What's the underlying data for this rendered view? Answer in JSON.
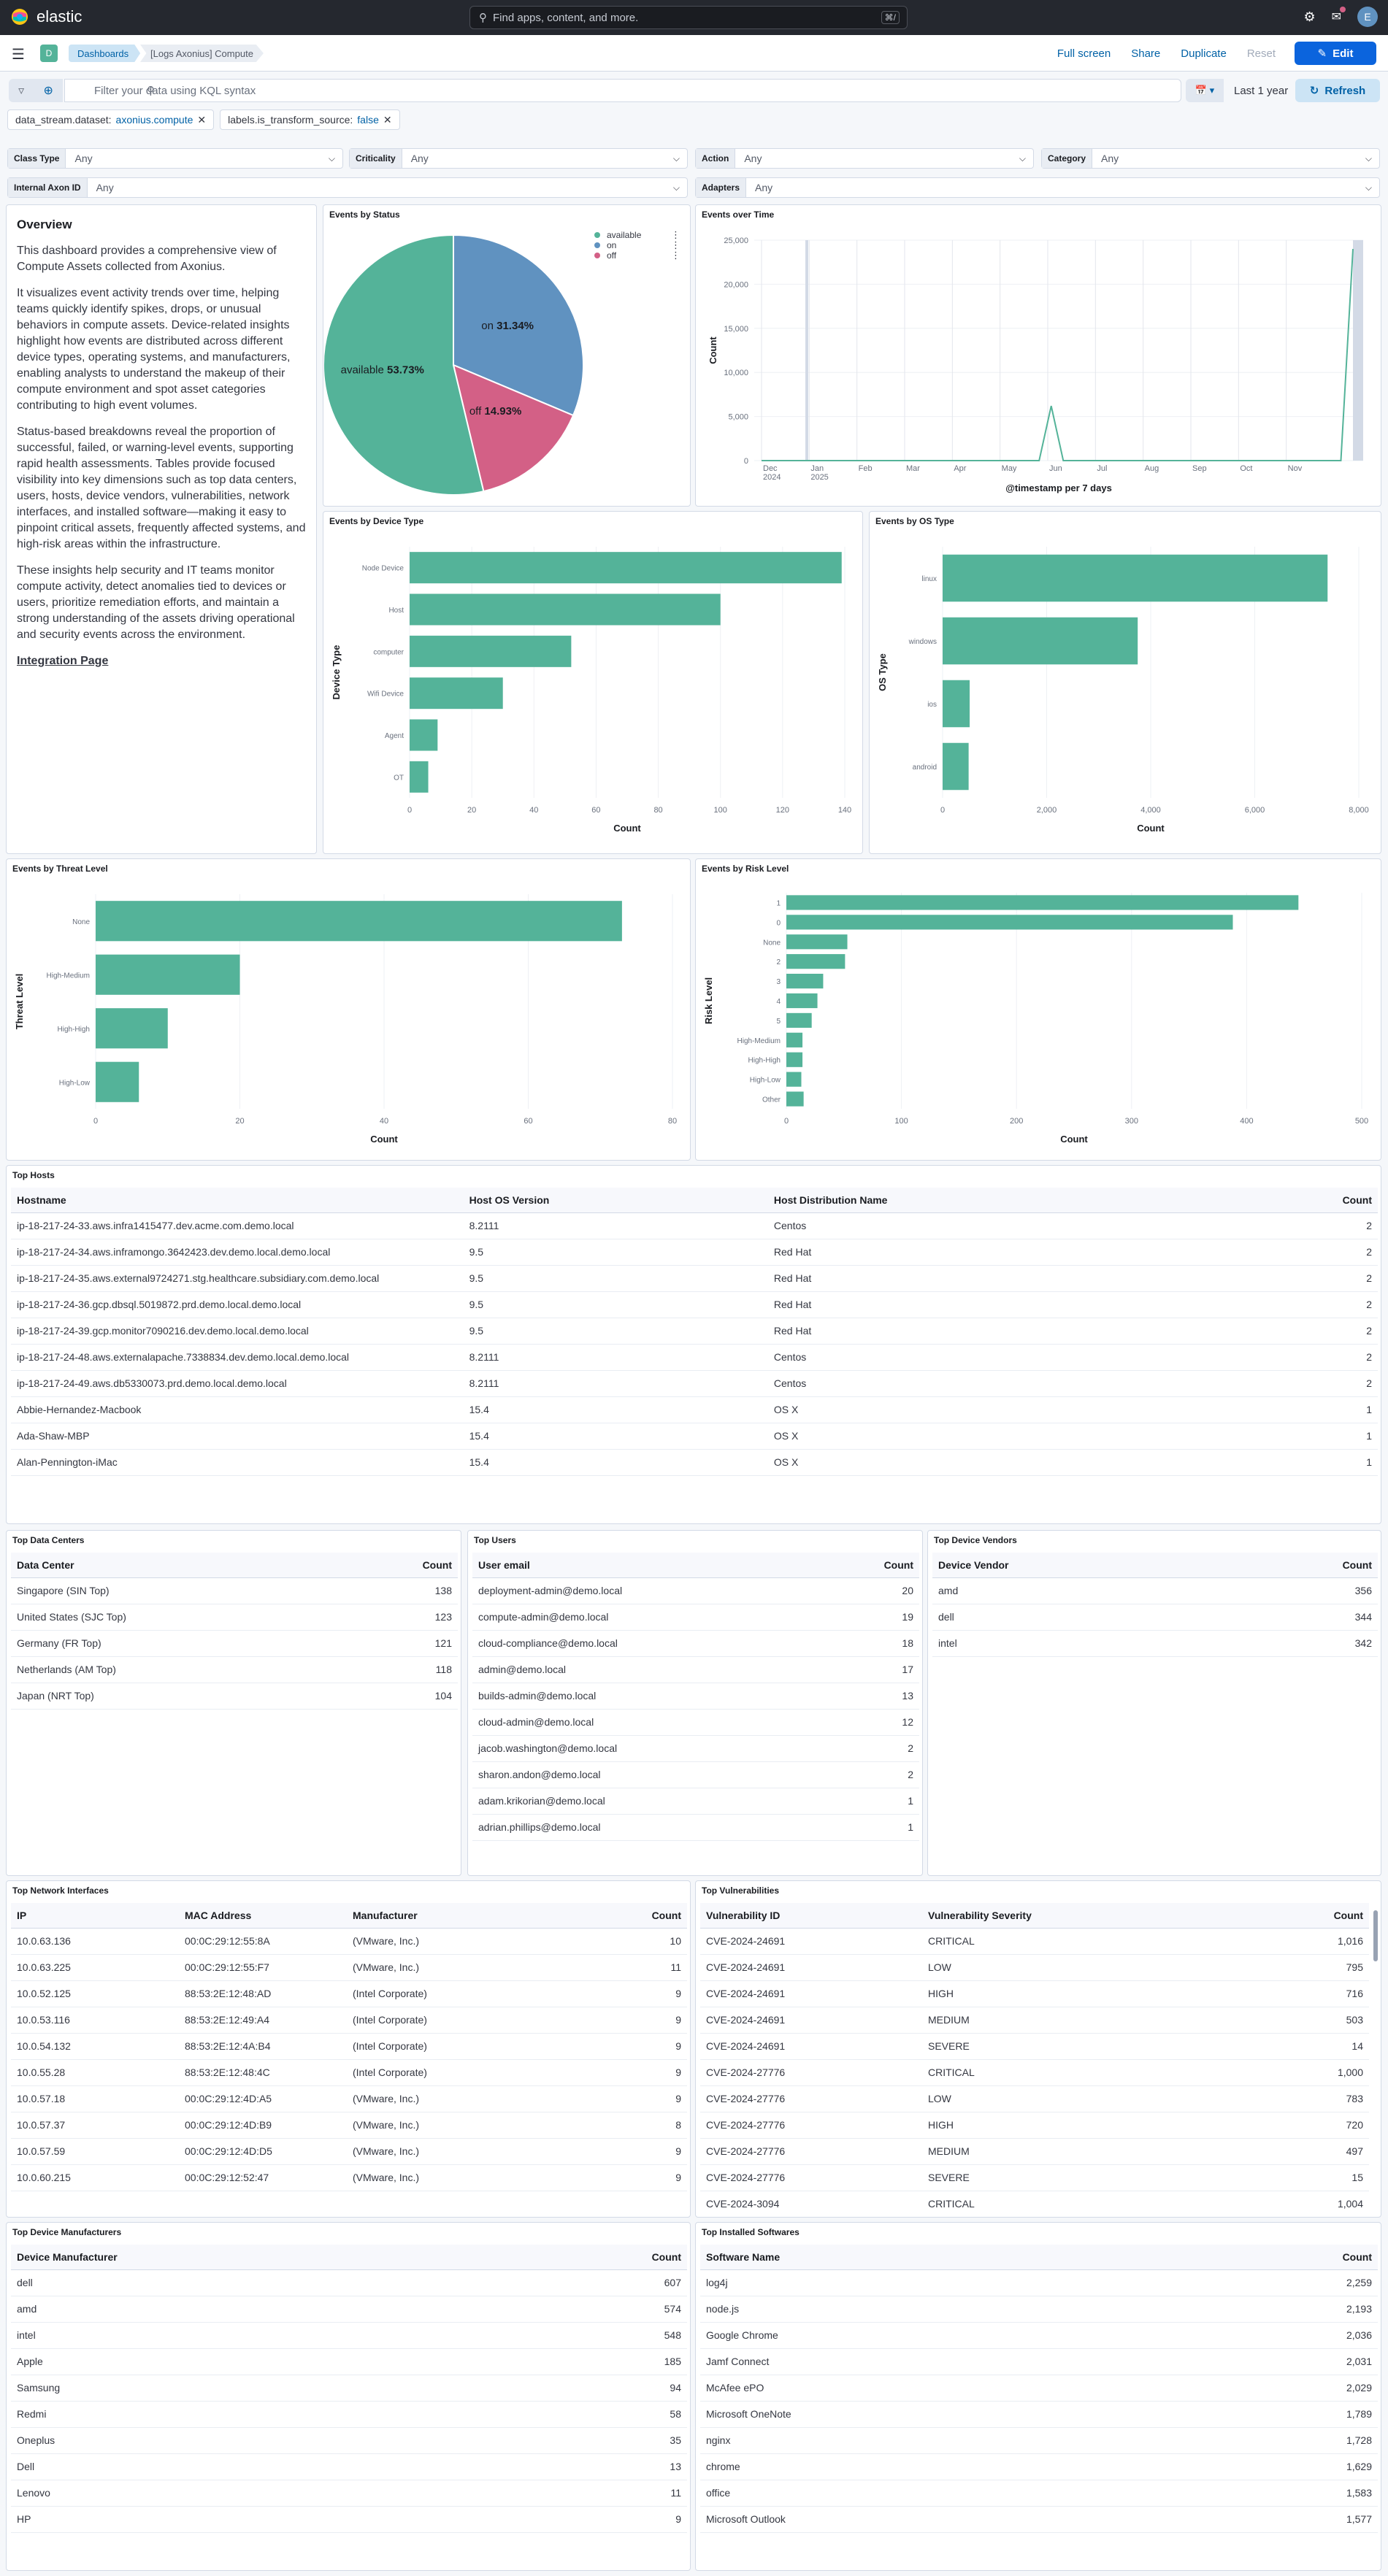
{
  "app": {
    "name": "elastic",
    "search_placeholder": "Find apps, content, and more.",
    "search_shortcut": "⌘/",
    "avatar": "E",
    "space": "D"
  },
  "breadcrumbs": [
    "Dashboards",
    "[Logs Axonius] Compute"
  ],
  "actions": {
    "fullscreen": "Full screen",
    "share": "Share",
    "duplicate": "Duplicate",
    "reset": "Reset",
    "edit": "Edit"
  },
  "query": {
    "placeholder": "Filter your data using KQL syntax",
    "time": "Last 1 year",
    "refresh": "Refresh"
  },
  "filters": [
    {
      "key": "data_stream.dataset:",
      "value": "axonius.compute"
    },
    {
      "key": "labels.is_transform_source:",
      "value": "false"
    }
  ],
  "controls": [
    {
      "label": "Class Type",
      "value": "Any"
    },
    {
      "label": "Criticality",
      "value": "Any"
    },
    {
      "label": "Action",
      "value": "Any"
    },
    {
      "label": "Category",
      "value": "Any"
    },
    {
      "label": "Internal Axon ID",
      "value": "Any"
    },
    {
      "label": "Adapters",
      "value": "Any"
    }
  ],
  "overview": {
    "title": "Overview",
    "paragraphs": [
      "This dashboard provides a comprehensive view of Compute Assets collected from Axonius.",
      "It visualizes event activity trends over time, helping teams quickly identify spikes, drops, or unusual behaviors in compute assets. Device-related insights highlight how events are distributed across different device types, operating systems, and manufacturers, enabling analysts to understand the makeup of their compute environment and spot asset categories contributing to high event volumes.",
      "Status-based breakdowns reveal the proportion of successful, failed, or warning-level events, supporting rapid health assessments. Tables provide focused visibility into key dimensions such as top data centers, users, hosts, device vendors, vulnerabilities, network interfaces, and installed software—making it easy to pinpoint critical assets, frequently affected systems, and high-risk areas within the infrastructure.",
      "These insights help security and IT teams monitor compute activity, detect anomalies tied to devices or users, prioritize remediation efforts, and maintain a strong understanding of the assets driving operational and security events across the environment."
    ],
    "link": "Integration Page"
  },
  "panels": {
    "status": "Events by Status",
    "over_time": "Events over Time",
    "device_type": "Events by Device Type",
    "os_type": "Events by OS Type",
    "threat": "Events by Threat Level",
    "risk": "Events by Risk Level",
    "top_hosts": "Top Hosts",
    "top_dc": "Top Data Centers",
    "top_users": "Top Users",
    "top_vendors": "Top Device Vendors",
    "top_net": "Top Network Interfaces",
    "top_vuln": "Top Vulnerabilities",
    "top_mfr": "Top Device Manufacturers",
    "top_sw": "Top Installed Softwares"
  },
  "chart_data": [
    {
      "type": "pie",
      "title": "Events by Status",
      "series": [
        {
          "name": "available",
          "value": 53.73,
          "color": "#54b399"
        },
        {
          "name": "on",
          "value": 31.34,
          "color": "#6092c0"
        },
        {
          "name": "off",
          "value": 14.93,
          "color": "#d36086"
        }
      ],
      "labels": [
        "available 53.73%",
        "on 31.34%",
        "off 14.93%"
      ],
      "legend": "top-right"
    },
    {
      "type": "line",
      "title": "Events over Time",
      "xlabel": "@timestamp per 7 days",
      "ylabel": "Count",
      "ylim": [
        0,
        25000
      ],
      "yticks": [
        "0",
        "5,000",
        "10,000",
        "15,000",
        "20,000",
        "25,000"
      ],
      "xticks": [
        "Dec 2024",
        "Jan 2025",
        "Feb",
        "Mar",
        "Apr",
        "May",
        "Jun",
        "Jul",
        "Aug",
        "Sep",
        "Oct",
        "Nov"
      ],
      "values": [
        0,
        0,
        0,
        0,
        0,
        0,
        0,
        0,
        0,
        0,
        0,
        0,
        0,
        0,
        0,
        0,
        0,
        0,
        0,
        0,
        0,
        0,
        0,
        0,
        6200,
        0,
        0,
        0,
        0,
        0,
        0,
        0,
        0,
        0,
        0,
        0,
        0,
        0,
        0,
        0,
        0,
        0,
        0,
        0,
        0,
        0,
        0,
        0,
        0,
        24000
      ],
      "color": "#54b399"
    },
    {
      "type": "bar",
      "title": "Events by Device Type",
      "xlabel": "Count",
      "ylabel": "Device Type",
      "categories": [
        "Node Device",
        "Host",
        "computer",
        "Wifi Device",
        "Agent",
        "OT"
      ],
      "values": [
        139,
        100,
        52,
        30,
        9,
        6
      ],
      "xlim": [
        0,
        140
      ],
      "xticks": [
        "0",
        "20",
        "40",
        "60",
        "80",
        "100",
        "120",
        "140"
      ]
    },
    {
      "type": "bar",
      "title": "Events by OS Type",
      "xlabel": "Count",
      "ylabel": "OS Type",
      "categories": [
        "linux",
        "windows",
        "ios",
        "android"
      ],
      "values": [
        7400,
        3750,
        520,
        500
      ],
      "xlim": [
        0,
        8000
      ],
      "xticks": [
        "0",
        "2,000",
        "4,000",
        "6,000",
        "8,000"
      ]
    },
    {
      "type": "bar",
      "title": "Events by Threat Level",
      "xlabel": "Count",
      "ylabel": "Threat Level",
      "categories": [
        "None",
        "High-Medium",
        "High-High",
        "High-Low"
      ],
      "values": [
        73,
        20,
        10,
        6
      ],
      "xlim": [
        0,
        80
      ],
      "xticks": [
        "0",
        "20",
        "40",
        "60",
        "80"
      ]
    },
    {
      "type": "bar",
      "title": "Events by Risk Level",
      "xlabel": "Count",
      "ylabel": "Risk Level",
      "categories": [
        "1",
        "0",
        "None",
        "2",
        "3",
        "4",
        "5",
        "High-Medium",
        "High-High",
        "High-Low",
        "Other"
      ],
      "values": [
        445,
        388,
        53,
        51,
        32,
        27,
        22,
        14,
        14,
        13,
        15
      ],
      "xlim": [
        0,
        500
      ],
      "xticks": [
        "0",
        "100",
        "200",
        "300",
        "400",
        "500"
      ]
    }
  ],
  "tables": {
    "hosts": {
      "headers": [
        "Hostname",
        "Host OS Version",
        "Host Distribution Name",
        "Count"
      ],
      "rows": [
        [
          "ip-18-217-24-33.aws.infra1415477.dev.acme.com.demo.local",
          "8.2111",
          "Centos",
          "2"
        ],
        [
          "ip-18-217-24-34.aws.inframongo.3642423.dev.demo.local.demo.local",
          "9.5",
          "Red Hat",
          "2"
        ],
        [
          "ip-18-217-24-35.aws.external9724271.stg.healthcare.subsidiary.com.demo.local",
          "9.5",
          "Red Hat",
          "2"
        ],
        [
          "ip-18-217-24-36.gcp.dbsql.5019872.prd.demo.local.demo.local",
          "9.5",
          "Red Hat",
          "2"
        ],
        [
          "ip-18-217-24-39.gcp.monitor7090216.dev.demo.local.demo.local",
          "9.5",
          "Red Hat",
          "2"
        ],
        [
          "ip-18-217-24-48.aws.externalapache.7338834.dev.demo.local.demo.local",
          "8.2111",
          "Centos",
          "2"
        ],
        [
          "ip-18-217-24-49.aws.db5330073.prd.demo.local.demo.local",
          "8.2111",
          "Centos",
          "2"
        ],
        [
          "Abbie-Hernandez-Macbook",
          "15.4",
          "OS X",
          "1"
        ],
        [
          "Ada-Shaw-MBP",
          "15.4",
          "OS X",
          "1"
        ],
        [
          "Alan-Pennington-iMac",
          "15.4",
          "OS X",
          "1"
        ]
      ]
    },
    "dc": {
      "headers": [
        "Data Center",
        "Count"
      ],
      "rows": [
        [
          "Singapore (SIN Top)",
          "138"
        ],
        [
          "United States (SJC Top)",
          "123"
        ],
        [
          "Germany (FR Top)",
          "121"
        ],
        [
          "Netherlands (AM Top)",
          "118"
        ],
        [
          "Japan (NRT Top)",
          "104"
        ]
      ]
    },
    "users": {
      "headers": [
        "User email",
        "Count"
      ],
      "rows": [
        [
          "deployment-admin@demo.local",
          "20"
        ],
        [
          "compute-admin@demo.local",
          "19"
        ],
        [
          "cloud-compliance@demo.local",
          "18"
        ],
        [
          "admin@demo.local",
          "17"
        ],
        [
          "builds-admin@demo.local",
          "13"
        ],
        [
          "cloud-admin@demo.local",
          "12"
        ],
        [
          "jacob.washington@demo.local",
          "2"
        ],
        [
          "sharon.andon@demo.local",
          "2"
        ],
        [
          "adam.krikorian@demo.local",
          "1"
        ],
        [
          "adrian.phillips@demo.local",
          "1"
        ]
      ]
    },
    "vendors": {
      "headers": [
        "Device Vendor",
        "Count"
      ],
      "rows": [
        [
          "amd",
          "356"
        ],
        [
          "dell",
          "344"
        ],
        [
          "intel",
          "342"
        ]
      ]
    },
    "net": {
      "headers": [
        "IP",
        "MAC Address",
        "Manufacturer",
        "Count"
      ],
      "rows": [
        [
          "10.0.63.136",
          "00:0C:29:12:55:8A",
          "(VMware, Inc.)",
          "10"
        ],
        [
          "10.0.63.225",
          "00:0C:29:12:55:F7",
          "(VMware, Inc.)",
          "11"
        ],
        [
          "10.0.52.125",
          "88:53:2E:12:48:AD",
          "(Intel Corporate)",
          "9"
        ],
        [
          "10.0.53.116",
          "88:53:2E:12:49:A4",
          "(Intel Corporate)",
          "9"
        ],
        [
          "10.0.54.132",
          "88:53:2E:12:4A:B4",
          "(Intel Corporate)",
          "9"
        ],
        [
          "10.0.55.28",
          "88:53:2E:12:48:4C",
          "(Intel Corporate)",
          "9"
        ],
        [
          "10.0.57.18",
          "00:0C:29:12:4D:A5",
          "(VMware, Inc.)",
          "9"
        ],
        [
          "10.0.57.37",
          "00:0C:29:12:4D:B9",
          "(VMware, Inc.)",
          "8"
        ],
        [
          "10.0.57.59",
          "00:0C:29:12:4D:D5",
          "(VMware, Inc.)",
          "9"
        ],
        [
          "10.0.60.215",
          "00:0C:29:12:52:47",
          "(VMware, Inc.)",
          "9"
        ]
      ]
    },
    "vuln": {
      "headers": [
        "Vulnerability ID",
        "Vulnerability Severity",
        "Count"
      ],
      "rows": [
        [
          "CVE-2024-24691",
          "CRITICAL",
          "1,016"
        ],
        [
          "CVE-2024-24691",
          "LOW",
          "795"
        ],
        [
          "CVE-2024-24691",
          "HIGH",
          "716"
        ],
        [
          "CVE-2024-24691",
          "MEDIUM",
          "503"
        ],
        [
          "CVE-2024-24691",
          "SEVERE",
          "14"
        ],
        [
          "CVE-2024-27776",
          "CRITICAL",
          "1,000"
        ],
        [
          "CVE-2024-27776",
          "LOW",
          "783"
        ],
        [
          "CVE-2024-27776",
          "HIGH",
          "720"
        ],
        [
          "CVE-2024-27776",
          "MEDIUM",
          "497"
        ],
        [
          "CVE-2024-27776",
          "SEVERE",
          "15"
        ],
        [
          "CVE-2024-3094",
          "CRITICAL",
          "1,004"
        ]
      ]
    },
    "mfr": {
      "headers": [
        "Device Manufacturer",
        "Count"
      ],
      "rows": [
        [
          "dell",
          "607"
        ],
        [
          "amd",
          "574"
        ],
        [
          "intel",
          "548"
        ],
        [
          "Apple",
          "185"
        ],
        [
          "Samsung",
          "94"
        ],
        [
          "Redmi",
          "58"
        ],
        [
          "Oneplus",
          "35"
        ],
        [
          "Dell",
          "13"
        ],
        [
          "Lenovo",
          "11"
        ],
        [
          "HP",
          "9"
        ]
      ]
    },
    "sw": {
      "headers": [
        "Software Name",
        "Count"
      ],
      "rows": [
        [
          "log4j",
          "2,259"
        ],
        [
          "node.js",
          "2,193"
        ],
        [
          "Google Chrome",
          "2,036"
        ],
        [
          "Jamf Connect",
          "2,031"
        ],
        [
          "McAfee ePO",
          "2,029"
        ],
        [
          "Microsoft OneNote",
          "1,789"
        ],
        [
          "nginx",
          "1,728"
        ],
        [
          "chrome",
          "1,629"
        ],
        [
          "office",
          "1,583"
        ],
        [
          "Microsoft Outlook",
          "1,577"
        ]
      ]
    }
  }
}
